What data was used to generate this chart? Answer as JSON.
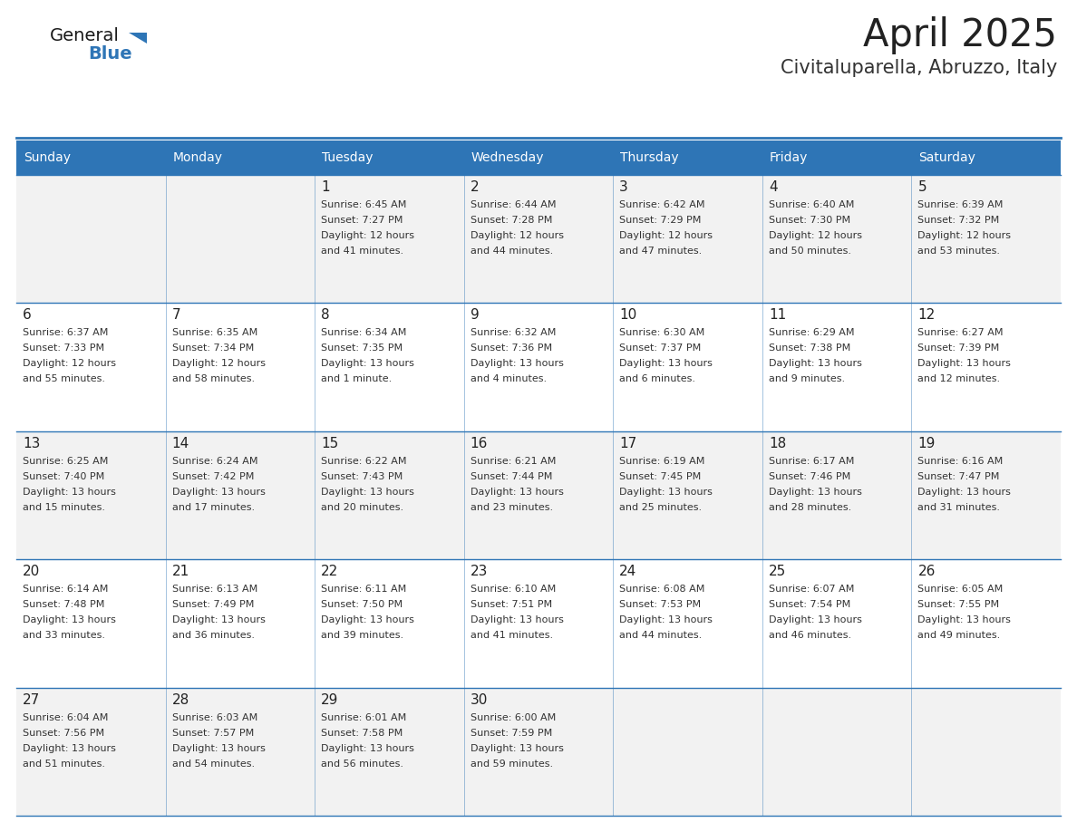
{
  "title": "April 2025",
  "subtitle": "Civitaluparella, Abruzzo, Italy",
  "header_bg": "#2E75B6",
  "header_text_color": "#FFFFFF",
  "cell_bg_light": "#F2F2F2",
  "cell_bg_white": "#FFFFFF",
  "border_color": "#2E75B6",
  "day_names": [
    "Sunday",
    "Monday",
    "Tuesday",
    "Wednesday",
    "Thursday",
    "Friday",
    "Saturday"
  ],
  "title_color": "#222222",
  "subtitle_color": "#333333",
  "cell_text_color": "#333333",
  "day_num_color": "#222222",
  "logo_general_color": "#1a1a1a",
  "logo_blue_color": "#2E75B6",
  "fig_width": 11.88,
  "fig_height": 9.18,
  "dpi": 100,
  "calendar": [
    [
      {
        "day": "",
        "sunrise": "",
        "sunset": "",
        "daylight": ""
      },
      {
        "day": "",
        "sunrise": "",
        "sunset": "",
        "daylight": ""
      },
      {
        "day": "1",
        "sunrise": "6:45 AM",
        "sunset": "7:27 PM",
        "daylight": "12 hours and 41 minutes."
      },
      {
        "day": "2",
        "sunrise": "6:44 AM",
        "sunset": "7:28 PM",
        "daylight": "12 hours and 44 minutes."
      },
      {
        "day": "3",
        "sunrise": "6:42 AM",
        "sunset": "7:29 PM",
        "daylight": "12 hours and 47 minutes."
      },
      {
        "day": "4",
        "sunrise": "6:40 AM",
        "sunset": "7:30 PM",
        "daylight": "12 hours and 50 minutes."
      },
      {
        "day": "5",
        "sunrise": "6:39 AM",
        "sunset": "7:32 PM",
        "daylight": "12 hours and 53 minutes."
      }
    ],
    [
      {
        "day": "6",
        "sunrise": "6:37 AM",
        "sunset": "7:33 PM",
        "daylight": "12 hours and 55 minutes."
      },
      {
        "day": "7",
        "sunrise": "6:35 AM",
        "sunset": "7:34 PM",
        "daylight": "12 hours and 58 minutes."
      },
      {
        "day": "8",
        "sunrise": "6:34 AM",
        "sunset": "7:35 PM",
        "daylight": "13 hours and 1 minute."
      },
      {
        "day": "9",
        "sunrise": "6:32 AM",
        "sunset": "7:36 PM",
        "daylight": "13 hours and 4 minutes."
      },
      {
        "day": "10",
        "sunrise": "6:30 AM",
        "sunset": "7:37 PM",
        "daylight": "13 hours and 6 minutes."
      },
      {
        "day": "11",
        "sunrise": "6:29 AM",
        "sunset": "7:38 PM",
        "daylight": "13 hours and 9 minutes."
      },
      {
        "day": "12",
        "sunrise": "6:27 AM",
        "sunset": "7:39 PM",
        "daylight": "13 hours and 12 minutes."
      }
    ],
    [
      {
        "day": "13",
        "sunrise": "6:25 AM",
        "sunset": "7:40 PM",
        "daylight": "13 hours and 15 minutes."
      },
      {
        "day": "14",
        "sunrise": "6:24 AM",
        "sunset": "7:42 PM",
        "daylight": "13 hours and 17 minutes."
      },
      {
        "day": "15",
        "sunrise": "6:22 AM",
        "sunset": "7:43 PM",
        "daylight": "13 hours and 20 minutes."
      },
      {
        "day": "16",
        "sunrise": "6:21 AM",
        "sunset": "7:44 PM",
        "daylight": "13 hours and 23 minutes."
      },
      {
        "day": "17",
        "sunrise": "6:19 AM",
        "sunset": "7:45 PM",
        "daylight": "13 hours and 25 minutes."
      },
      {
        "day": "18",
        "sunrise": "6:17 AM",
        "sunset": "7:46 PM",
        "daylight": "13 hours and 28 minutes."
      },
      {
        "day": "19",
        "sunrise": "6:16 AM",
        "sunset": "7:47 PM",
        "daylight": "13 hours and 31 minutes."
      }
    ],
    [
      {
        "day": "20",
        "sunrise": "6:14 AM",
        "sunset": "7:48 PM",
        "daylight": "13 hours and 33 minutes."
      },
      {
        "day": "21",
        "sunrise": "6:13 AM",
        "sunset": "7:49 PM",
        "daylight": "13 hours and 36 minutes."
      },
      {
        "day": "22",
        "sunrise": "6:11 AM",
        "sunset": "7:50 PM",
        "daylight": "13 hours and 39 minutes."
      },
      {
        "day": "23",
        "sunrise": "6:10 AM",
        "sunset": "7:51 PM",
        "daylight": "13 hours and 41 minutes."
      },
      {
        "day": "24",
        "sunrise": "6:08 AM",
        "sunset": "7:53 PM",
        "daylight": "13 hours and 44 minutes."
      },
      {
        "day": "25",
        "sunrise": "6:07 AM",
        "sunset": "7:54 PM",
        "daylight": "13 hours and 46 minutes."
      },
      {
        "day": "26",
        "sunrise": "6:05 AM",
        "sunset": "7:55 PM",
        "daylight": "13 hours and 49 minutes."
      }
    ],
    [
      {
        "day": "27",
        "sunrise": "6:04 AM",
        "sunset": "7:56 PM",
        "daylight": "13 hours and 51 minutes."
      },
      {
        "day": "28",
        "sunrise": "6:03 AM",
        "sunset": "7:57 PM",
        "daylight": "13 hours and 54 minutes."
      },
      {
        "day": "29",
        "sunrise": "6:01 AM",
        "sunset": "7:58 PM",
        "daylight": "13 hours and 56 minutes."
      },
      {
        "day": "30",
        "sunrise": "6:00 AM",
        "sunset": "7:59 PM",
        "daylight": "13 hours and 59 minutes."
      },
      {
        "day": "",
        "sunrise": "",
        "sunset": "",
        "daylight": ""
      },
      {
        "day": "",
        "sunrise": "",
        "sunset": "",
        "daylight": ""
      },
      {
        "day": "",
        "sunrise": "",
        "sunset": "",
        "daylight": ""
      }
    ]
  ]
}
